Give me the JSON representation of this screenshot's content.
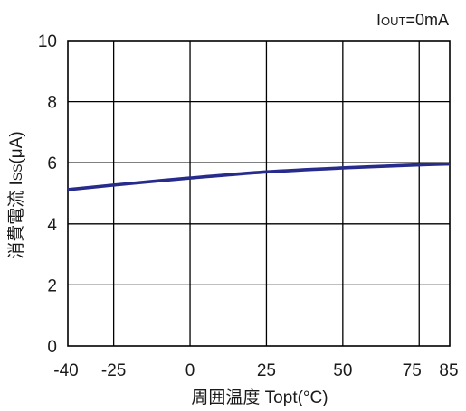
{
  "chart_data": {
    "type": "line",
    "title": "",
    "annotation": "IOUT=0mA",
    "annotation_parts": {
      "main": "I",
      "sub": "OUT",
      "rest": "=0mA"
    },
    "xlabel": "周囲温度 Topt(°C)",
    "ylabel": "消費電流 ISS(μA)",
    "ylabel_parts": {
      "prefix": "消費電流 I",
      "sub": "SS",
      "suffix": "(μA)"
    },
    "xlim": [
      -40,
      85
    ],
    "ylim": [
      0,
      10
    ],
    "x_ticks": [
      -40,
      -25,
      0,
      25,
      50,
      75,
      85
    ],
    "x_tick_labels": [
      "-40",
      "-25",
      "0",
      "25",
      "50",
      "75",
      "85"
    ],
    "y_ticks": [
      0,
      2,
      4,
      6,
      8,
      10
    ],
    "y_tick_labels": [
      "0",
      "2",
      "4",
      "6",
      "8",
      "10"
    ],
    "grid": true,
    "series": [
      {
        "color": "#262b8c",
        "x": [
          -40,
          -25,
          0,
          25,
          50,
          75,
          85
        ],
        "y": [
          5.12,
          5.27,
          5.5,
          5.7,
          5.83,
          5.93,
          5.96
        ]
      }
    ]
  }
}
